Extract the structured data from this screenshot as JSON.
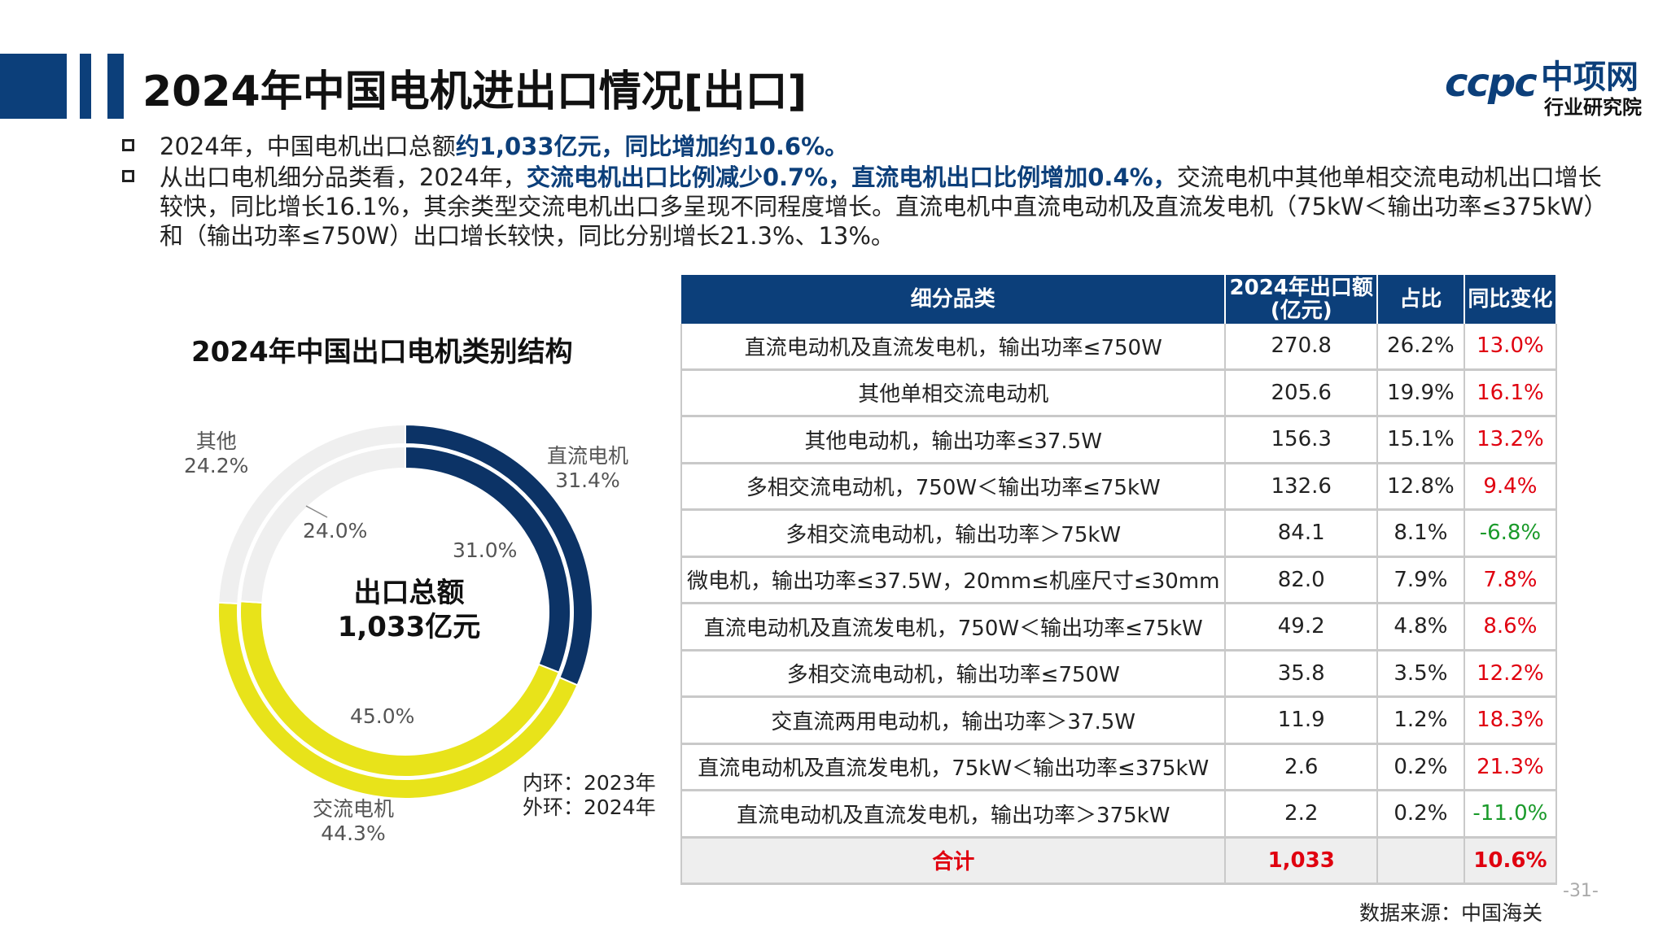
{
  "header": {
    "title": "2024年中国电机进出口情况[出口]",
    "logo_mark": "ccpc",
    "logo_name": "中项网",
    "logo_sub": "行业研究院",
    "brand_color": "#0c3f7a"
  },
  "bullets": [
    {
      "pre": "2024年，中国电机出口总额",
      "hl": "约1,033亿元，同比增加约10.6%。",
      "post": ""
    },
    {
      "pre": "从出口电机细分品类看，2024年，",
      "hl": "交流电机出口比例减少0.7%，直流电机出口比例增加0.4%，",
      "post": "交流电机中其他单相交流电动机出口增长较快，同比增长16.1%，其余类型交流电机出口多呈现不同程度增长。直流电机中直流电动机及直流发电机（75kW＜输出功率≤375kW）和（输出功率≤750W）出口增长较快，同比分别增长21.3%、13%。"
    }
  ],
  "chart_data": {
    "type": "donut",
    "title": "2024年中国出口电机类别结构",
    "center": {
      "line1": "出口总额",
      "line2": "1,033亿元"
    },
    "legend_note": {
      "inner": "内环：2023年",
      "outer": "外环：2024年"
    },
    "categories": [
      "直流电机",
      "交流电机",
      "其他"
    ],
    "colors": [
      "#0c3366",
      "#e8e31a",
      "#efefef"
    ],
    "series": [
      {
        "name": "2024年",
        "ring": "outer",
        "values": [
          31.4,
          44.3,
          24.2
        ],
        "labels": [
          "31.4%",
          "44.3%",
          "24.2%"
        ]
      },
      {
        "name": "2023年",
        "ring": "inner",
        "values": [
          31.0,
          45.0,
          24.0
        ],
        "labels": [
          "31.0%",
          "45.0%",
          "24.0%"
        ]
      }
    ]
  },
  "table": {
    "headers": [
      "细分品类",
      "2024年出口额\n(亿元)",
      "占比",
      "同比变化"
    ],
    "rows": [
      {
        "name": "直流电动机及直流发电机，输出功率≤750W",
        "value": "270.8",
        "share": "26.2%",
        "yoy": "13.0%",
        "dir": "pos"
      },
      {
        "name": "其他单相交流电动机",
        "value": "205.6",
        "share": "19.9%",
        "yoy": "16.1%",
        "dir": "pos"
      },
      {
        "name": "其他电动机，输出功率≤37.5W",
        "value": "156.3",
        "share": "15.1%",
        "yoy": "13.2%",
        "dir": "pos"
      },
      {
        "name": "多相交流电动机，750W＜输出功率≤75kW",
        "value": "132.6",
        "share": "12.8%",
        "yoy": "9.4%",
        "dir": "pos"
      },
      {
        "name": "多相交流电动机，输出功率＞75kW",
        "value": "84.1",
        "share": "8.1%",
        "yoy": "-6.8%",
        "dir": "neg"
      },
      {
        "name": "微电机，输出功率≤37.5W，20mm≤机座尺寸≤30mm",
        "value": "82.0",
        "share": "7.9%",
        "yoy": "7.8%",
        "dir": "pos"
      },
      {
        "name": "直流电动机及直流发电机，750W＜输出功率≤75kW",
        "value": "49.2",
        "share": "4.8%",
        "yoy": "8.6%",
        "dir": "pos"
      },
      {
        "name": "多相交流电动机，输出功率≤750W",
        "value": "35.8",
        "share": "3.5%",
        "yoy": "12.2%",
        "dir": "pos"
      },
      {
        "name": "交直流两用电动机，输出功率＞37.5W",
        "value": "11.9",
        "share": "1.2%",
        "yoy": "18.3%",
        "dir": "pos"
      },
      {
        "name": "直流电动机及直流发电机，75kW＜输出功率≤375kW",
        "value": "2.6",
        "share": "0.2%",
        "yoy": "21.3%",
        "dir": "pos"
      },
      {
        "name": "直流电动机及直流发电机，输出功率＞375kW",
        "value": "2.2",
        "share": "0.2%",
        "yoy": "-11.0%",
        "dir": "neg"
      }
    ],
    "total": {
      "name": "合计",
      "value": "1,033",
      "share": "",
      "yoy": "10.6%"
    }
  },
  "footer": {
    "page": "-31-",
    "source": "数据来源：中国海关"
  }
}
